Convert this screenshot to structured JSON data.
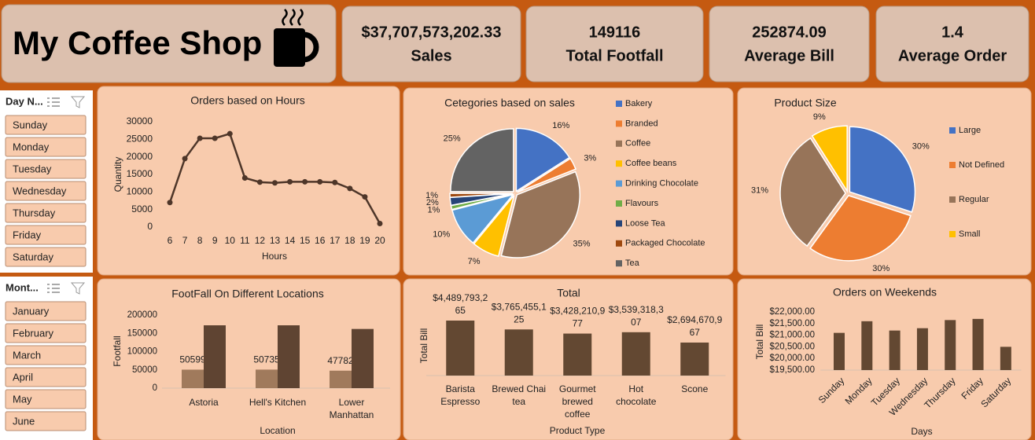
{
  "header": {
    "title": "My Coffee Shop"
  },
  "kpis": [
    {
      "value": "$37,707,573,202.33",
      "label": "Sales"
    },
    {
      "value": "149116",
      "label": "Total Footfall"
    },
    {
      "value": "252874.09",
      "label": "Average Bill"
    },
    {
      "value": "1.4",
      "label": "Average Order"
    }
  ],
  "slicers": [
    {
      "title": "Day N...",
      "items": [
        "Sunday",
        "Monday",
        "Tuesday",
        "Wednesday",
        "Thursday",
        "Friday",
        "Saturday"
      ]
    },
    {
      "title": "Mont...",
      "items": [
        "January",
        "February",
        "March",
        "April",
        "May",
        "June"
      ]
    }
  ],
  "chart_data": [
    {
      "type": "line",
      "title": "Orders based on Hours",
      "x": [
        6,
        7,
        8,
        9,
        10,
        11,
        12,
        13,
        14,
        15,
        16,
        17,
        18,
        19,
        20
      ],
      "values": [
        7000,
        19500,
        25300,
        25300,
        26600,
        14000,
        12800,
        12600,
        12900,
        12900,
        12900,
        12700,
        11000,
        8600,
        1000
      ],
      "color": "#4e3629",
      "ylim": [
        0,
        30000
      ],
      "yticks": [
        0,
        5000,
        10000,
        15000,
        20000,
        25000,
        30000
      ],
      "y_label": "Quantity",
      "x_label": "Hours"
    },
    {
      "type": "pie",
      "title": "Cetegories based on sales",
      "categories": [
        "Bakery",
        "Branded",
        "Coffee",
        "Coffee beans",
        "Drinking Chocolate",
        "Flavours",
        "Loose Tea",
        "Packaged Chocolate",
        "Tea"
      ],
      "values": [
        16,
        3,
        35,
        7,
        10,
        1,
        2,
        1,
        25
      ],
      "value_labels": [
        "16%",
        "3%",
        "35%",
        "7%",
        "10%",
        "1%",
        "2%",
        "1%",
        "25%"
      ],
      "colors": [
        "#4472c4",
        "#ed7d31",
        "#977459",
        "#ffc000",
        "#5b9bd5",
        "#70ad47",
        "#264478",
        "#9e480e",
        "#636363"
      ]
    },
    {
      "type": "pie",
      "title": "Product Size",
      "categories": [
        "Large",
        "Not Defined",
        "Regular",
        "Small"
      ],
      "values": [
        30,
        30,
        31,
        9
      ],
      "value_labels": [
        "30%",
        "30%",
        "31%",
        "9%"
      ],
      "colors": [
        "#4472c4",
        "#ed7d31",
        "#977459",
        "#ffc000"
      ]
    },
    {
      "type": "bar",
      "title": "FootFall On Different Locations",
      "categories": [
        "Astoria",
        "Hell's Kitchen",
        "Lower Manhattan"
      ],
      "series": [
        {
          "color": "#a07a5c",
          "values": [
            50599,
            50735,
            47782
          ],
          "show_labels": true
        },
        {
          "color": "#5f4432",
          "values": [
            172000,
            172000,
            162000
          ],
          "show_labels": false
        }
      ],
      "ylim": [
        0,
        200000
      ],
      "yticks": [
        0,
        50000,
        100000,
        150000,
        200000
      ],
      "y_label": "Footfall",
      "x_label": "Location"
    },
    {
      "type": "bar",
      "title": "Total",
      "categories": [
        "Barista Espresso",
        "Brewed Chai tea",
        "Gourmet brewed coffee",
        "Hot chocolate",
        "Scone"
      ],
      "series": [
        {
          "color": "#634832",
          "values": [
            4489793265,
            3765455125,
            3428210977,
            3539318307,
            2694670967
          ],
          "value_labels": [
            "$4,489,793,265",
            "$3,765,455,125",
            "$3,428,210,977",
            "$3,539,318,307",
            "$2,694,670,967"
          ]
        }
      ],
      "y_label": "Total Bill",
      "x_label": "Product Type"
    },
    {
      "type": "bar",
      "title": "Orders on Weekends",
      "categories": [
        "Sunday",
        "Monday",
        "Tuesday",
        "Wednesday",
        "Thursday",
        "Friday",
        "Saturday"
      ],
      "series": [
        {
          "color": "#634832",
          "values": [
            21100,
            21600,
            21200,
            21300,
            21650,
            21700,
            20500
          ]
        }
      ],
      "ylim": [
        19500,
        22000
      ],
      "yticks": [
        {
          "value": 19500,
          "label": "$19,500.00"
        },
        {
          "value": 20000,
          "label": "$20,000.00"
        },
        {
          "value": 20500,
          "label": "$20,500.00"
        },
        {
          "value": 21000,
          "label": "$21,000.00"
        },
        {
          "value": 21500,
          "label": "$21,500.00"
        },
        {
          "value": 22000,
          "label": "$22,000.00"
        }
      ],
      "y_label": "Total Bill",
      "x_label": "Days"
    }
  ]
}
